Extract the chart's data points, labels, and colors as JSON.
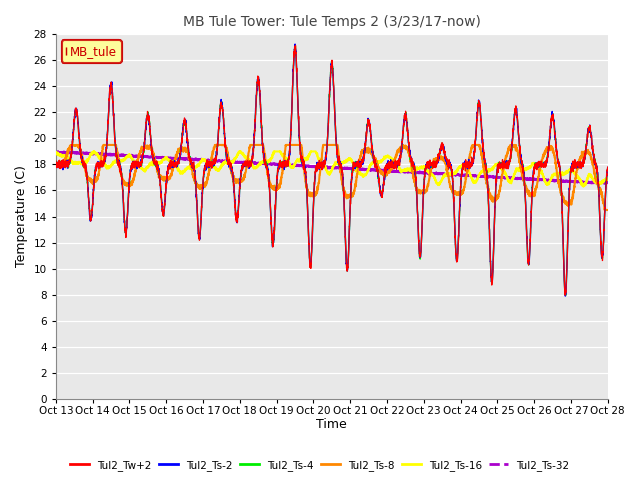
{
  "title": "MB Tule Tower: Tule Temps 2 (3/23/17-now)",
  "xlabel": "Time",
  "ylabel": "Temperature (C)",
  "ylim": [
    0,
    28
  ],
  "yticks": [
    0,
    2,
    4,
    6,
    8,
    10,
    12,
    14,
    16,
    18,
    20,
    22,
    24,
    26,
    28
  ],
  "xtick_labels": [
    "Oct 13",
    "Oct 14",
    "Oct 15",
    "Oct 16",
    "Oct 17",
    "Oct 18",
    "Oct 19",
    "Oct 20",
    "Oct 21",
    "Oct 22",
    "Oct 23",
    "Oct 24",
    "Oct 25",
    "Oct 26",
    "Oct 27",
    "Oct 28"
  ],
  "series_colors": {
    "Tul2_Tw+2": "#ff0000",
    "Tul2_Ts-2": "#0000ff",
    "Tul2_Ts-4": "#00ee00",
    "Tul2_Ts-8": "#ff8800",
    "Tul2_Ts-16": "#ffff00",
    "Tul2_Ts-32": "#aa00cc"
  },
  "legend_label": "MB_tule",
  "legend_box_color": "#ffff99",
  "legend_box_edge": "#cc0000",
  "background_color": "#ffffff",
  "plot_bg_color": "#e8e8e8",
  "grid_color": "#ffffff",
  "peak_heights": [
    22.5,
    24.5,
    22.0,
    21.5,
    23.0,
    25.0,
    27.5,
    26.2,
    21.5,
    22.0,
    19.5,
    23.0,
    22.5,
    22.0,
    21.0
  ],
  "trough_depths": [
    13.5,
    12.5,
    14.0,
    12.0,
    13.5,
    11.5,
    9.8,
    9.5,
    15.5,
    10.5,
    10.2,
    8.5,
    10.0,
    7.5,
    10.5
  ],
  "peak_times": [
    0.55,
    1.5,
    2.5,
    3.5,
    4.5,
    5.5,
    6.5,
    7.5,
    8.5,
    9.5,
    10.5,
    11.5,
    12.5,
    13.5,
    14.5
  ],
  "trough_times": [
    0.95,
    1.9,
    2.92,
    3.9,
    4.92,
    5.9,
    6.92,
    7.92,
    8.85,
    9.9,
    10.9,
    11.85,
    12.85,
    13.85,
    14.85
  ]
}
